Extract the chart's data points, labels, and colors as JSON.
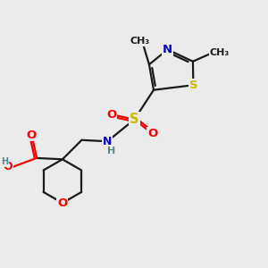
{
  "bg_color": "#ebebeb",
  "bond_color": "#1a1a1a",
  "atom_colors": {
    "O": "#ff0000",
    "N": "#0000cc",
    "S_thiazole": "#ccbb00",
    "S_sulfonyl": "#ccbb00",
    "H": "#558888",
    "C": "#1a1a1a"
  },
  "lw": 1.6,
  "fs": 9.5,
  "figsize": [
    3.0,
    3.0
  ],
  "dpi": 100,
  "xlim": [
    0.0,
    1.0
  ],
  "ylim": [
    0.0,
    1.0
  ]
}
